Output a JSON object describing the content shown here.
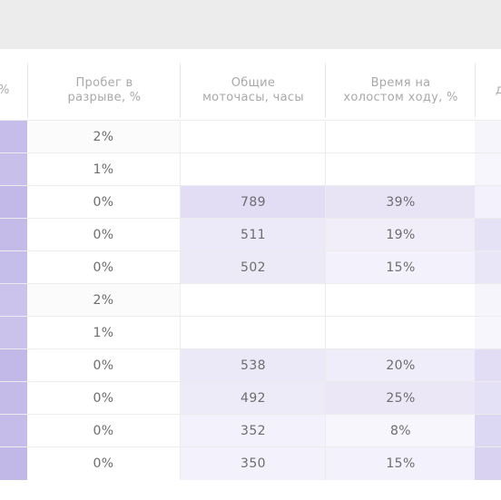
{
  "headers": {
    "col0_fragment": "%",
    "col1": "Пробег в\nразрыве, %",
    "col2": "Общие\nмоточасы, часы",
    "col3": "Время на\nхолостом ходу, %",
    "col4_fragment": "д"
  },
  "colors": {
    "background": "#ececec",
    "panel": "#ffffff",
    "header_text": "#a9a9a9",
    "cell_text": "#6d6d6d"
  },
  "rows": [
    {
      "gap_mileage": "2%",
      "engine_hours": "",
      "idle_time": "",
      "c0": "#c6bdea",
      "c1": "#fbfbfc",
      "c2": "#ffffff",
      "c3": "#ffffff",
      "c4": "#f6f5fc"
    },
    {
      "gap_mileage": "1%",
      "engine_hours": "",
      "idle_time": "",
      "c0": "#c8c0ea",
      "c1": "#ffffff",
      "c2": "#ffffff",
      "c3": "#ffffff",
      "c4": "#f7f6fc"
    },
    {
      "gap_mileage": "0%",
      "engine_hours": "789",
      "idle_time": "39%",
      "c0": "#c3b9e9",
      "c1": "#ffffff",
      "c2": "#e2ddf4",
      "c3": "#e8e4f6",
      "c4": "#f3f1fb"
    },
    {
      "gap_mileage": "0%",
      "engine_hours": "511",
      "idle_time": "19%",
      "c0": "#c4bbe9",
      "c1": "#ffffff",
      "c2": "#ece9f8",
      "c3": "#f1eefa",
      "c4": "#e6e2f6"
    },
    {
      "gap_mileage": "0%",
      "engine_hours": "502",
      "idle_time": "15%",
      "c0": "#c6beea",
      "c1": "#ffffff",
      "c2": "#edeaf8",
      "c3": "#f3f1fb",
      "c4": "#e9e6f7"
    },
    {
      "gap_mileage": "2%",
      "engine_hours": "",
      "idle_time": "",
      "c0": "#cbc3ec",
      "c1": "#fbfbfc",
      "c2": "#ffffff",
      "c3": "#ffffff",
      "c4": "#f6f5fc"
    },
    {
      "gap_mileage": "1%",
      "engine_hours": "",
      "idle_time": "",
      "c0": "#cac2eb",
      "c1": "#ffffff",
      "c2": "#ffffff",
      "c3": "#ffffff",
      "c4": "#f7f6fc"
    },
    {
      "gap_mileage": "0%",
      "engine_hours": "538",
      "idle_time": "20%",
      "c0": "#c3b9e9",
      "c1": "#ffffff",
      "c2": "#ebe8f7",
      "c3": "#f0edfa",
      "c4": "#e2ddf4"
    },
    {
      "gap_mileage": "0%",
      "engine_hours": "492",
      "idle_time": "25%",
      "c0": "#c4bbe9",
      "c1": "#ffffff",
      "c2": "#eeebf9",
      "c3": "#ebe7f7",
      "c4": "#e4e0f5"
    },
    {
      "gap_mileage": "0%",
      "engine_hours": "352",
      "idle_time": "8%",
      "c0": "#c5bcea",
      "c1": "#ffffff",
      "c2": "#f3f1fb",
      "c3": "#f7f6fc",
      "c4": "#dcd7f2"
    },
    {
      "gap_mileage": "0%",
      "engine_hours": "350",
      "idle_time": "15%",
      "c0": "#c2b8e8",
      "c1": "#ffffff",
      "c2": "#f3f1fb",
      "c3": "#f3f1fb",
      "c4": "#d9d3f1"
    }
  ]
}
